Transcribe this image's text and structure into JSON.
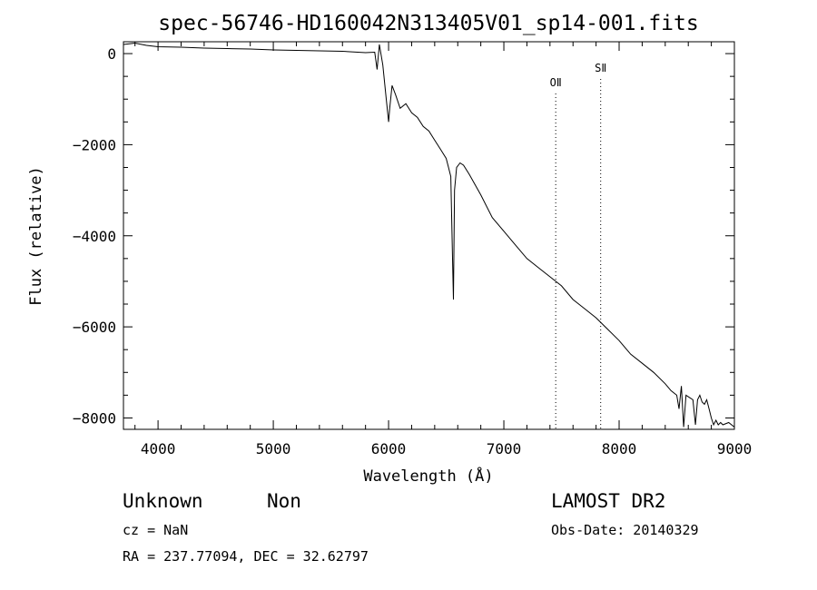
{
  "chart_data": {
    "type": "line",
    "title": "spec-56746-HD160042N313405V01_sp14-001.fits",
    "xlabel": "Wavelength (Å)",
    "ylabel": "Flux (relative)",
    "xlim": [
      3700,
      9000
    ],
    "ylim": [
      -8250,
      260
    ],
    "xticks": [
      4000,
      5000,
      6000,
      7000,
      8000,
      9000
    ],
    "yticks": [
      0,
      -2000,
      -4000,
      -6000,
      -8000
    ],
    "grid": false,
    "legend": "none",
    "series": [
      {
        "x": [
          3700,
          3800,
          3900,
          4000,
          4200,
          4400,
          4600,
          4800,
          5000,
          5200,
          5400,
          5600,
          5800,
          5880,
          5900,
          5920,
          5950,
          5980,
          6000,
          6010,
          6030,
          6060,
          6100,
          6150,
          6200,
          6250,
          6300,
          6350,
          6400,
          6450,
          6500,
          6520,
          6540,
          6555,
          6563,
          6572,
          6590,
          6620,
          6650,
          6700,
          6800,
          6900,
          7000,
          7100,
          7200,
          7300,
          7400,
          7500,
          7600,
          7700,
          7800,
          7900,
          8000,
          8100,
          8200,
          8300,
          8400,
          8450,
          8500,
          8520,
          8540,
          8560,
          8580,
          8610,
          8640,
          8662,
          8680,
          8700,
          8720,
          8740,
          8760,
          8780,
          8800,
          8820,
          8840,
          8860,
          8880,
          8900,
          8950,
          9000
        ],
        "values": [
          200,
          230,
          180,
          150,
          140,
          120,
          110,
          100,
          80,
          70,
          60,
          50,
          20,
          30,
          -350,
          200,
          -250,
          -1000,
          -1500,
          -1200,
          -700,
          -900,
          -1200,
          -1100,
          -1300,
          -1400,
          -1600,
          -1700,
          -1900,
          -2100,
          -2300,
          -2500,
          -2700,
          -4500,
          -5400,
          -3000,
          -2500,
          -2400,
          -2450,
          -2650,
          -3100,
          -3600,
          -3900,
          -4200,
          -4500,
          -4700,
          -4900,
          -5100,
          -5400,
          -5600,
          -5800,
          -6050,
          -6300,
          -6600,
          -6800,
          -7000,
          -7250,
          -7400,
          -7500,
          -7800,
          -7300,
          -8200,
          -7500,
          -7550,
          -7600,
          -8150,
          -7600,
          -7500,
          -7650,
          -7700,
          -7600,
          -7800,
          -8000,
          -8150,
          -8050,
          -8150,
          -8100,
          -8150,
          -8100,
          -8200
        ]
      }
    ],
    "annotations": [
      {
        "label": "OⅡ",
        "x": 7450
      },
      {
        "label": "SⅡ",
        "x": 7840
      }
    ]
  },
  "info": {
    "left_line1_a": "Unknown",
    "left_line1_b": "Non",
    "cz": "cz = NaN",
    "radec": "RA = 237.77094, DEC =  32.62797",
    "survey": "LAMOST DR2",
    "obs_date": "Obs-Date: 20140329"
  }
}
